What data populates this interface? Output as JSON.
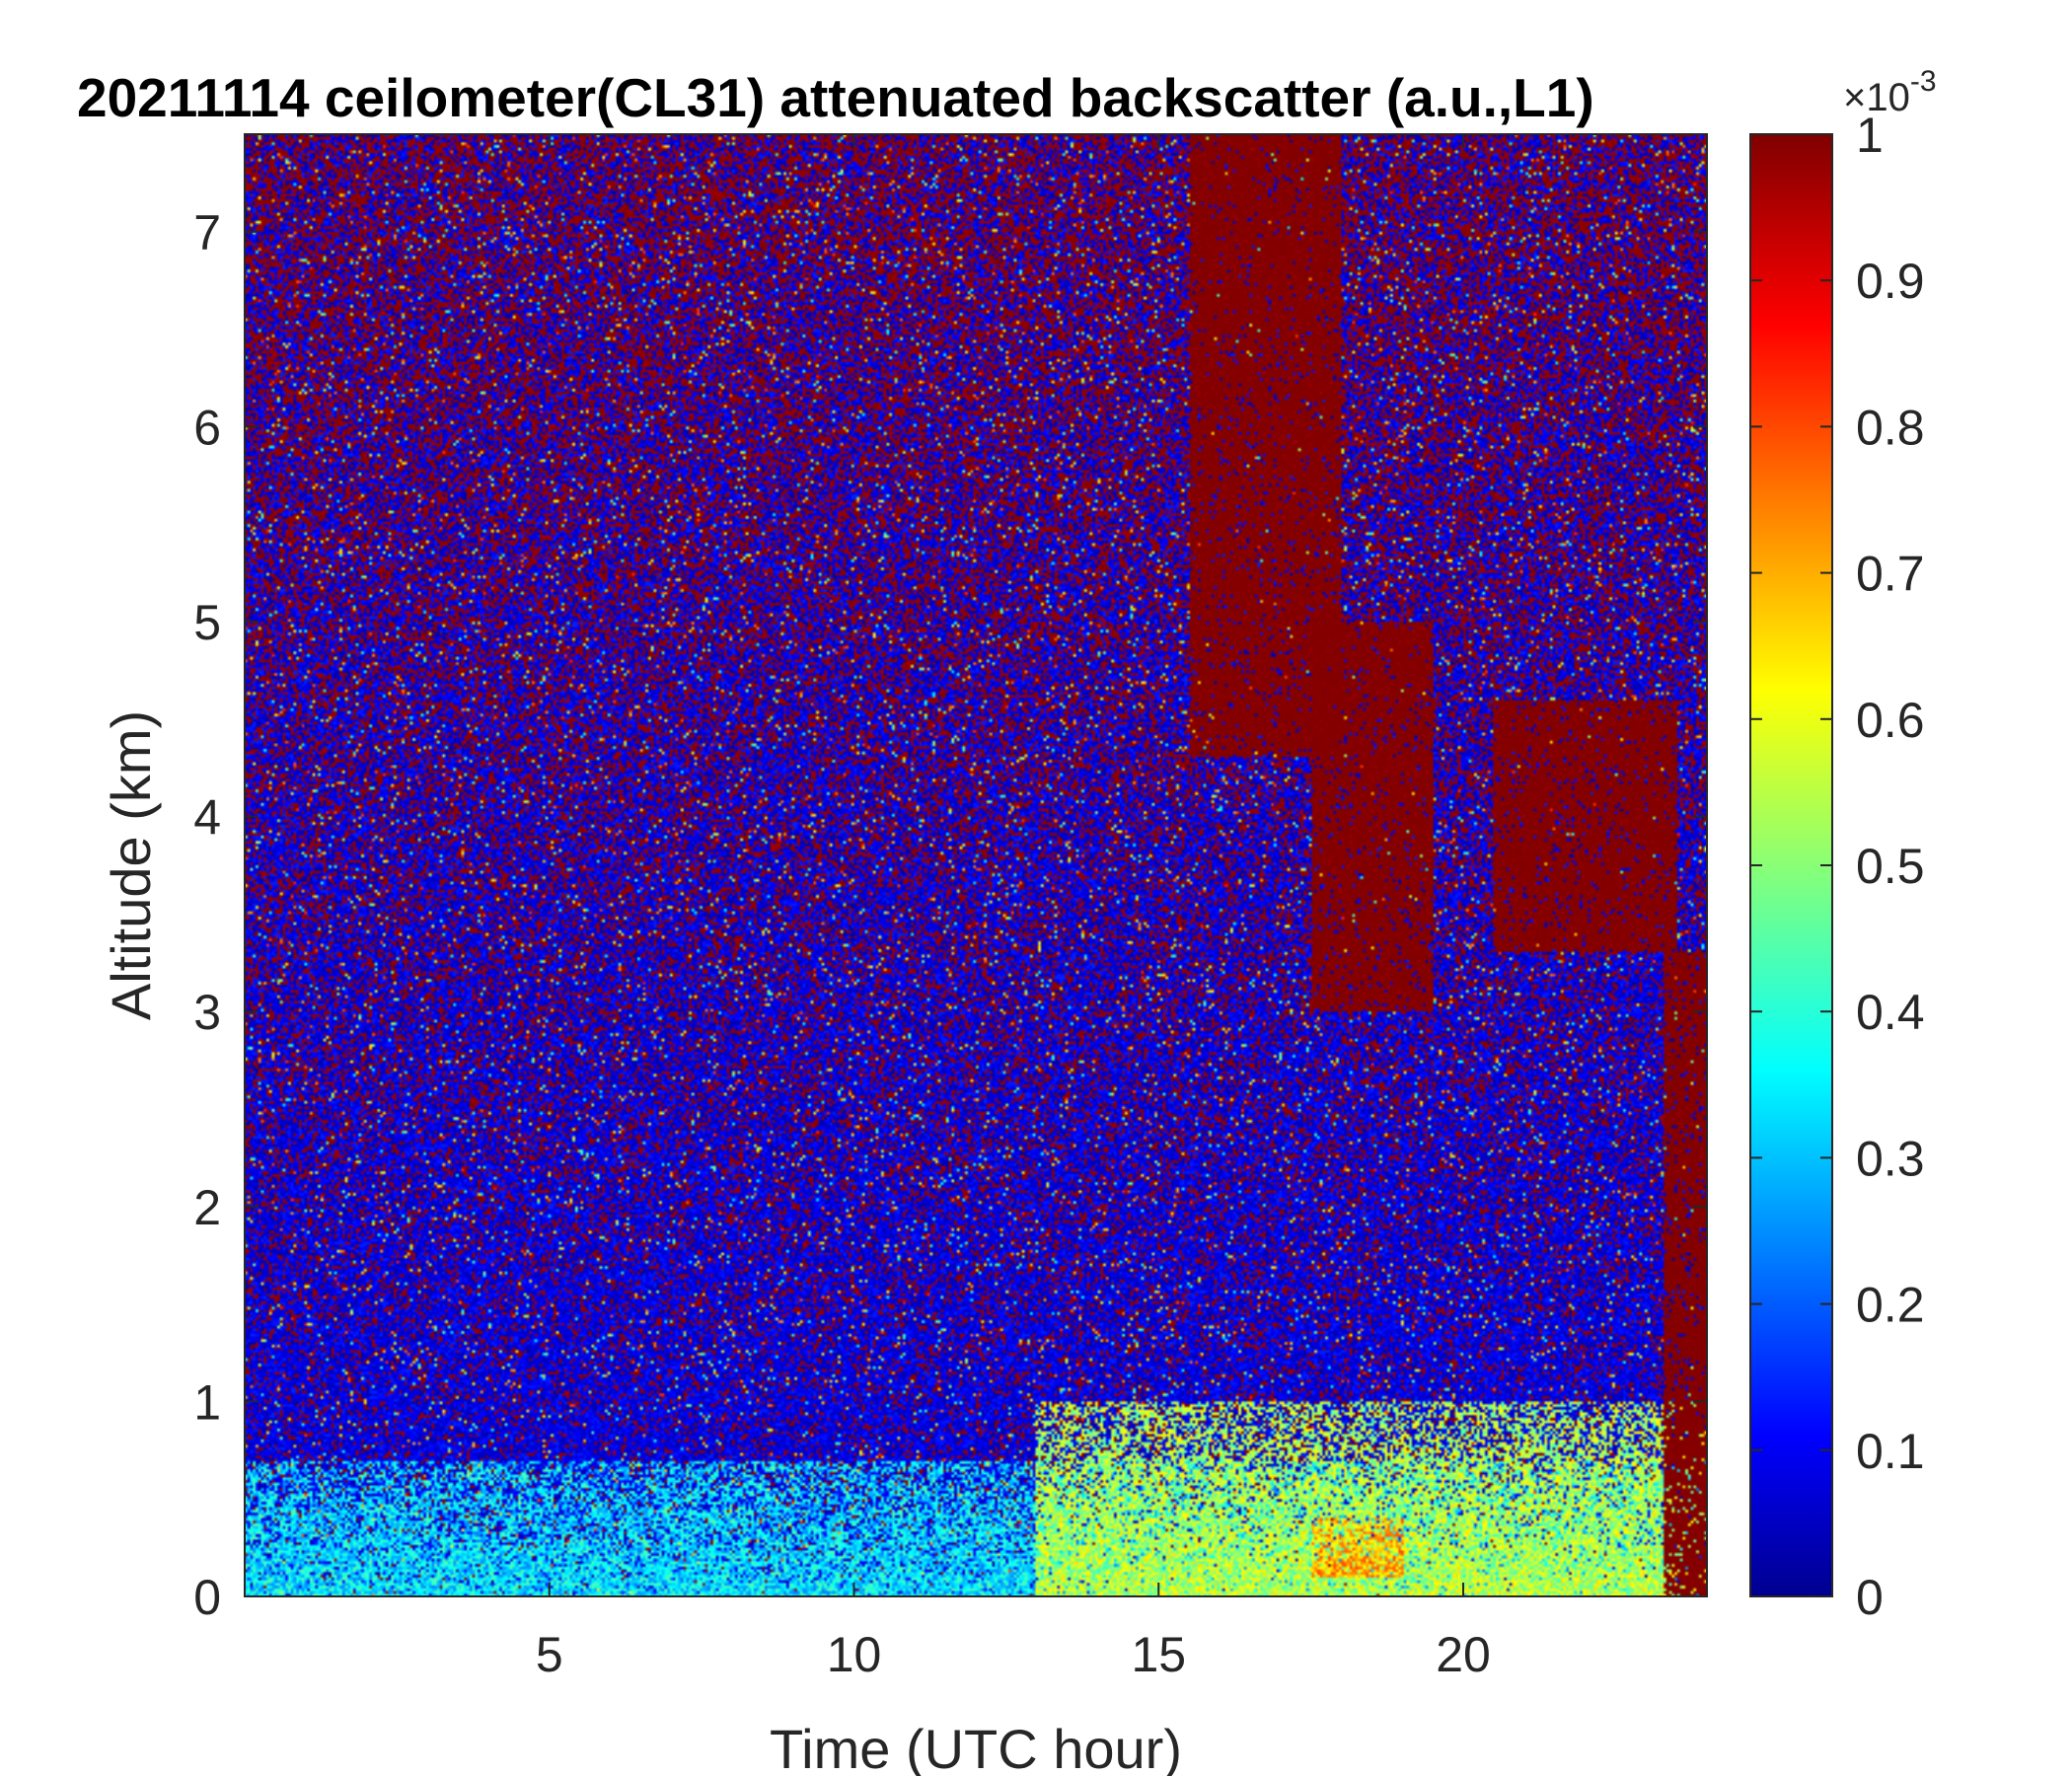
{
  "chart_data": {
    "type": "heatmap",
    "title": "20211114 ceilometer(CL31) attenuated backscatter (a.u.,L1)",
    "xlabel": "Time (UTC hour)",
    "ylabel": "Altitude (km)",
    "xlim": [
      0,
      24
    ],
    "ylim": [
      0,
      7.5
    ],
    "x_ticks": [
      5,
      10,
      15,
      20
    ],
    "x_tick_labels": [
      "5",
      "10",
      "15",
      "20"
    ],
    "y_ticks": [
      0,
      1,
      2,
      3,
      4,
      5,
      6,
      7
    ],
    "y_tick_labels": [
      "0",
      "1",
      "2",
      "3",
      "4",
      "5",
      "6",
      "7"
    ],
    "colorbar": {
      "colormap": "jet",
      "range": [
        0,
        1
      ],
      "exponent_label": "×10",
      "exponent_power": "-3",
      "ticks": [
        0,
        0.1,
        0.2,
        0.3,
        0.4,
        0.5,
        0.6,
        0.7,
        0.8,
        0.9,
        1
      ],
      "tick_labels": [
        "0",
        "0.1",
        "0.2",
        "0.3",
        "0.4",
        "0.5",
        "0.6",
        "0.7",
        "0.8",
        "0.9",
        "1"
      ]
    },
    "features": [
      {
        "time_range": [
          0,
          24
        ],
        "altitude_range": [
          0,
          0.7
        ],
        "value": 0.35
      },
      {
        "time_range": [
          13,
          24
        ],
        "altitude_range": [
          0,
          1.0
        ],
        "value": 0.55
      },
      {
        "time_range": [
          17.5,
          19
        ],
        "altitude_range": [
          0.1,
          0.4
        ],
        "value": 0.7
      },
      {
        "time_range": [
          15.5,
          18
        ],
        "altitude_range": [
          4.3,
          7.5
        ],
        "value": 1.0
      },
      {
        "time_range": [
          17.5,
          19.5
        ],
        "altitude_range": [
          3.0,
          5.0
        ],
        "value": 1.0
      },
      {
        "time_range": [
          20.5,
          23.5
        ],
        "altitude_range": [
          3.3,
          4.6
        ],
        "value": 1.0
      },
      {
        "time_range": [
          23.3,
          24
        ],
        "altitude_range": [
          0,
          3.3
        ],
        "value": 1.0
      }
    ],
    "colors": {
      "noise_low": "#00008f",
      "noise_high": "#800000",
      "boundary_layer": "#33c8ff"
    }
  }
}
